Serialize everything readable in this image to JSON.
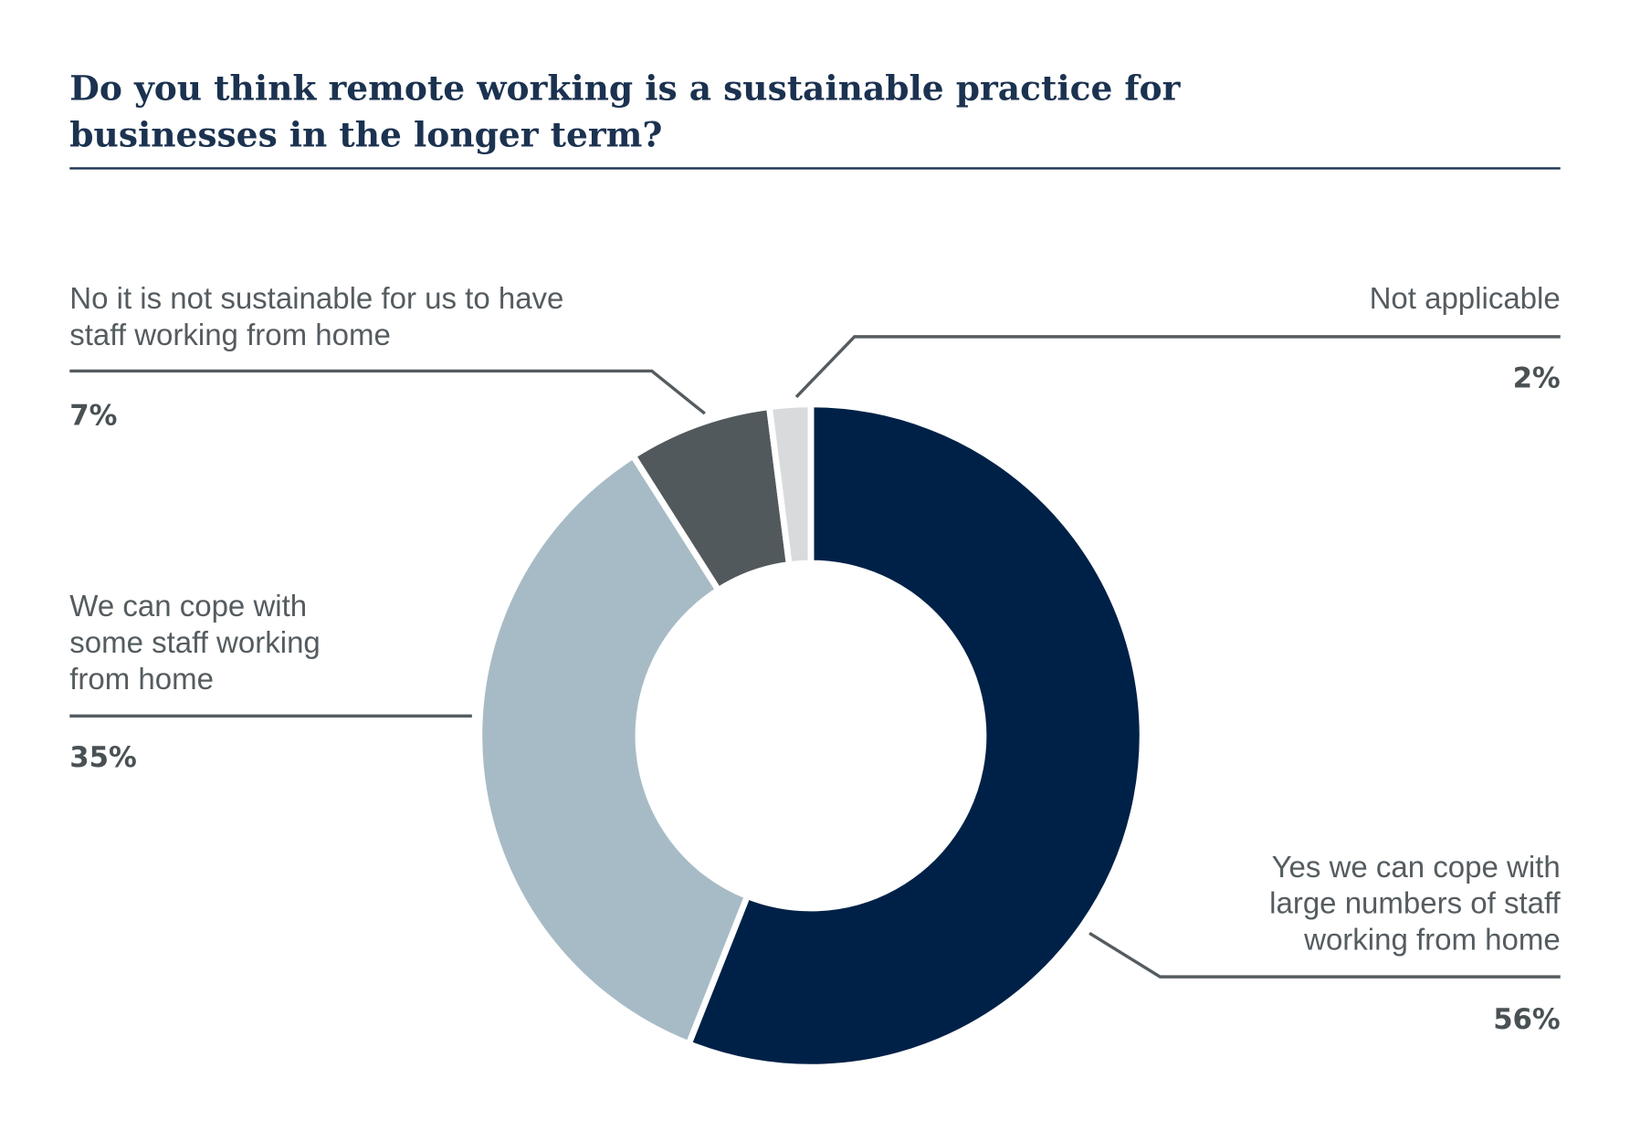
{
  "chart_data": {
    "type": "pie",
    "variant": "donut",
    "title": [
      "Do you think remote working is a sustainable practice for",
      "businesses in the longer term?"
    ],
    "slices": [
      {
        "label": [
          "Yes we can cope with",
          "large numbers of staff",
          "working from home"
        ],
        "value": 56,
        "pct_label": "56%",
        "color": "#002147"
      },
      {
        "label": [
          "We can cope with",
          "some staff working",
          "from home"
        ],
        "value": 35,
        "pct_label": "35%",
        "color": "#a7bbc6"
      },
      {
        "label": [
          "No it is not sustainable for us to have",
          "staff working from home"
        ],
        "value": 7,
        "pct_label": "7%",
        "color": "#52595d"
      },
      {
        "label": [
          "Not applicable"
        ],
        "value": 2,
        "pct_label": "2%",
        "color": "#d9dadc"
      }
    ],
    "start": "top",
    "direction": "clockwise"
  }
}
